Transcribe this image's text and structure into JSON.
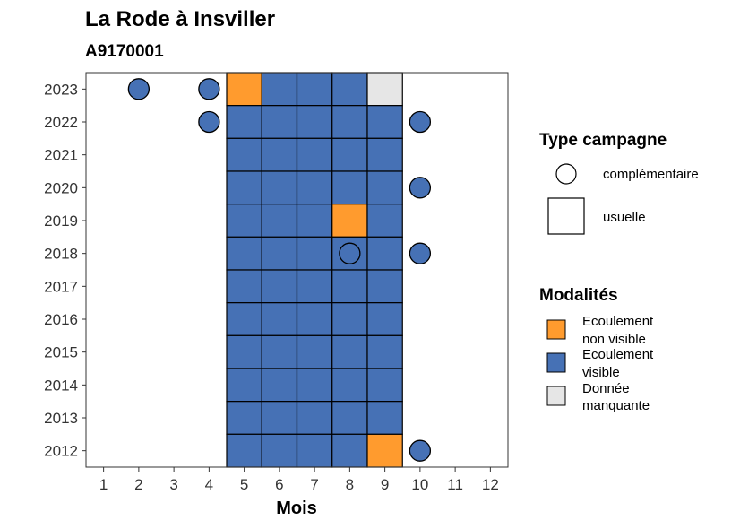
{
  "chart_data": {
    "type": "heatmap",
    "title": "La Rode à Insviller",
    "subtitle": "A9170001",
    "xlabel": "Mois",
    "ylabel": "",
    "x_ticks": [
      1,
      2,
      3,
      4,
      5,
      6,
      7,
      8,
      9,
      10,
      11,
      12
    ],
    "y_ticks": [
      2012,
      2013,
      2014,
      2015,
      2016,
      2017,
      2018,
      2019,
      2020,
      2021,
      2022,
      2023
    ],
    "xlim": [
      0.5,
      12.5
    ],
    "ylim": [
      2011.5,
      2023.5
    ],
    "grid": false,
    "colors": {
      "Ecoulement non visible": "#FF9B2E",
      "Ecoulement visible": "#4671B5",
      "Donnée manquante": "#E6E6E6"
    },
    "usuelle": [
      {
        "year": 2023,
        "month": 5,
        "value": "Ecoulement non visible"
      },
      {
        "year": 2023,
        "month": 6,
        "value": "Ecoulement visible"
      },
      {
        "year": 2023,
        "month": 7,
        "value": "Ecoulement visible"
      },
      {
        "year": 2023,
        "month": 8,
        "value": "Ecoulement visible"
      },
      {
        "year": 2023,
        "month": 9,
        "value": "Donnée manquante"
      },
      {
        "year": 2022,
        "month": 5,
        "value": "Ecoulement visible"
      },
      {
        "year": 2022,
        "month": 6,
        "value": "Ecoulement visible"
      },
      {
        "year": 2022,
        "month": 7,
        "value": "Ecoulement visible"
      },
      {
        "year": 2022,
        "month": 8,
        "value": "Ecoulement visible"
      },
      {
        "year": 2022,
        "month": 9,
        "value": "Ecoulement visible"
      },
      {
        "year": 2021,
        "month": 5,
        "value": "Ecoulement visible"
      },
      {
        "year": 2021,
        "month": 6,
        "value": "Ecoulement visible"
      },
      {
        "year": 2021,
        "month": 7,
        "value": "Ecoulement visible"
      },
      {
        "year": 2021,
        "month": 8,
        "value": "Ecoulement visible"
      },
      {
        "year": 2021,
        "month": 9,
        "value": "Ecoulement visible"
      },
      {
        "year": 2020,
        "month": 5,
        "value": "Ecoulement visible"
      },
      {
        "year": 2020,
        "month": 6,
        "value": "Ecoulement visible"
      },
      {
        "year": 2020,
        "month": 7,
        "value": "Ecoulement visible"
      },
      {
        "year": 2020,
        "month": 8,
        "value": "Ecoulement visible"
      },
      {
        "year": 2020,
        "month": 9,
        "value": "Ecoulement visible"
      },
      {
        "year": 2019,
        "month": 5,
        "value": "Ecoulement visible"
      },
      {
        "year": 2019,
        "month": 6,
        "value": "Ecoulement visible"
      },
      {
        "year": 2019,
        "month": 7,
        "value": "Ecoulement visible"
      },
      {
        "year": 2019,
        "month": 8,
        "value": "Ecoulement non visible"
      },
      {
        "year": 2019,
        "month": 9,
        "value": "Ecoulement visible"
      },
      {
        "year": 2018,
        "month": 5,
        "value": "Ecoulement visible"
      },
      {
        "year": 2018,
        "month": 6,
        "value": "Ecoulement visible"
      },
      {
        "year": 2018,
        "month": 7,
        "value": "Ecoulement visible"
      },
      {
        "year": 2018,
        "month": 8,
        "value": "Ecoulement visible"
      },
      {
        "year": 2018,
        "month": 9,
        "value": "Ecoulement visible"
      },
      {
        "year": 2017,
        "month": 5,
        "value": "Ecoulement visible"
      },
      {
        "year": 2017,
        "month": 6,
        "value": "Ecoulement visible"
      },
      {
        "year": 2017,
        "month": 7,
        "value": "Ecoulement visible"
      },
      {
        "year": 2017,
        "month": 8,
        "value": "Ecoulement visible"
      },
      {
        "year": 2017,
        "month": 9,
        "value": "Ecoulement visible"
      },
      {
        "year": 2016,
        "month": 5,
        "value": "Ecoulement visible"
      },
      {
        "year": 2016,
        "month": 6,
        "value": "Ecoulement visible"
      },
      {
        "year": 2016,
        "month": 7,
        "value": "Ecoulement visible"
      },
      {
        "year": 2016,
        "month": 8,
        "value": "Ecoulement visible"
      },
      {
        "year": 2016,
        "month": 9,
        "value": "Ecoulement visible"
      },
      {
        "year": 2015,
        "month": 5,
        "value": "Ecoulement visible"
      },
      {
        "year": 2015,
        "month": 6,
        "value": "Ecoulement visible"
      },
      {
        "year": 2015,
        "month": 7,
        "value": "Ecoulement visible"
      },
      {
        "year": 2015,
        "month": 8,
        "value": "Ecoulement visible"
      },
      {
        "year": 2015,
        "month": 9,
        "value": "Ecoulement visible"
      },
      {
        "year": 2014,
        "month": 5,
        "value": "Ecoulement visible"
      },
      {
        "year": 2014,
        "month": 6,
        "value": "Ecoulement visible"
      },
      {
        "year": 2014,
        "month": 7,
        "value": "Ecoulement visible"
      },
      {
        "year": 2014,
        "month": 8,
        "value": "Ecoulement visible"
      },
      {
        "year": 2014,
        "month": 9,
        "value": "Ecoulement visible"
      },
      {
        "year": 2013,
        "month": 5,
        "value": "Ecoulement visible"
      },
      {
        "year": 2013,
        "month": 6,
        "value": "Ecoulement visible"
      },
      {
        "year": 2013,
        "month": 7,
        "value": "Ecoulement visible"
      },
      {
        "year": 2013,
        "month": 8,
        "value": "Ecoulement visible"
      },
      {
        "year": 2013,
        "month": 9,
        "value": "Ecoulement visible"
      },
      {
        "year": 2012,
        "month": 5,
        "value": "Ecoulement visible"
      },
      {
        "year": 2012,
        "month": 6,
        "value": "Ecoulement visible"
      },
      {
        "year": 2012,
        "month": 7,
        "value": "Ecoulement visible"
      },
      {
        "year": 2012,
        "month": 8,
        "value": "Ecoulement visible"
      },
      {
        "year": 2012,
        "month": 9,
        "value": "Ecoulement non visible"
      }
    ],
    "complementaire": [
      {
        "year": 2023,
        "month": 2,
        "value": "Ecoulement visible"
      },
      {
        "year": 2023,
        "month": 4,
        "value": "Ecoulement visible"
      },
      {
        "year": 2022,
        "month": 4,
        "value": "Ecoulement visible"
      },
      {
        "year": 2022,
        "month": 10,
        "value": "Ecoulement visible"
      },
      {
        "year": 2020,
        "month": 10,
        "value": "Ecoulement visible"
      },
      {
        "year": 2018,
        "month": 8,
        "value": "Ecoulement visible"
      },
      {
        "year": 2018,
        "month": 10,
        "value": "Ecoulement visible"
      },
      {
        "year": 2012,
        "month": 10,
        "value": "Ecoulement visible"
      }
    ]
  },
  "legend": {
    "type_title": "Type campagne",
    "type_items": [
      {
        "label": "complémentaire",
        "shape": "circle"
      },
      {
        "label": "usuelle",
        "shape": "square"
      }
    ],
    "mod_title": "Modalités",
    "mod_items": [
      {
        "line1": "Ecoulement",
        "line2": "non visible",
        "color": "#FF9B2E"
      },
      {
        "line1": "Ecoulement",
        "line2": "visible",
        "color": "#4671B5"
      },
      {
        "line1": "Donnée",
        "line2": "manquante",
        "color": "#E6E6E6"
      }
    ]
  }
}
